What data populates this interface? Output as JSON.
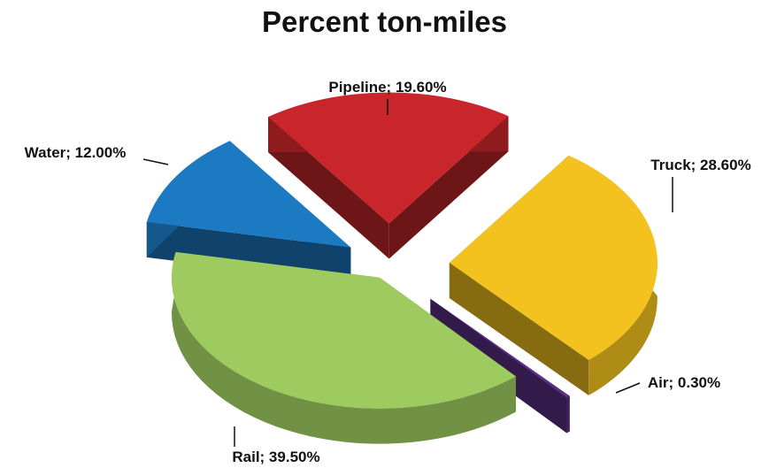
{
  "chart_data": {
    "type": "pie",
    "title": "Percent ton-miles",
    "slices": [
      {
        "name": "Truck",
        "value": 28.6,
        "label": "Truck; 28.60%",
        "color": "#F3C21E"
      },
      {
        "name": "Air",
        "value": 0.3,
        "label": "Air; 0.30%",
        "color": "#5B2F86"
      },
      {
        "name": "Rail",
        "value": 39.5,
        "label": "Rail; 39.50%",
        "color": "#9DCB60"
      },
      {
        "name": "Water",
        "value": 12.0,
        "label": "Water; 12.00%",
        "color": "#1C7AC2"
      },
      {
        "name": "Pipeline",
        "value": 19.6,
        "label": "Pipeline; 19.60%",
        "color": "#C8262A"
      }
    ],
    "style": "3d-exploded"
  }
}
